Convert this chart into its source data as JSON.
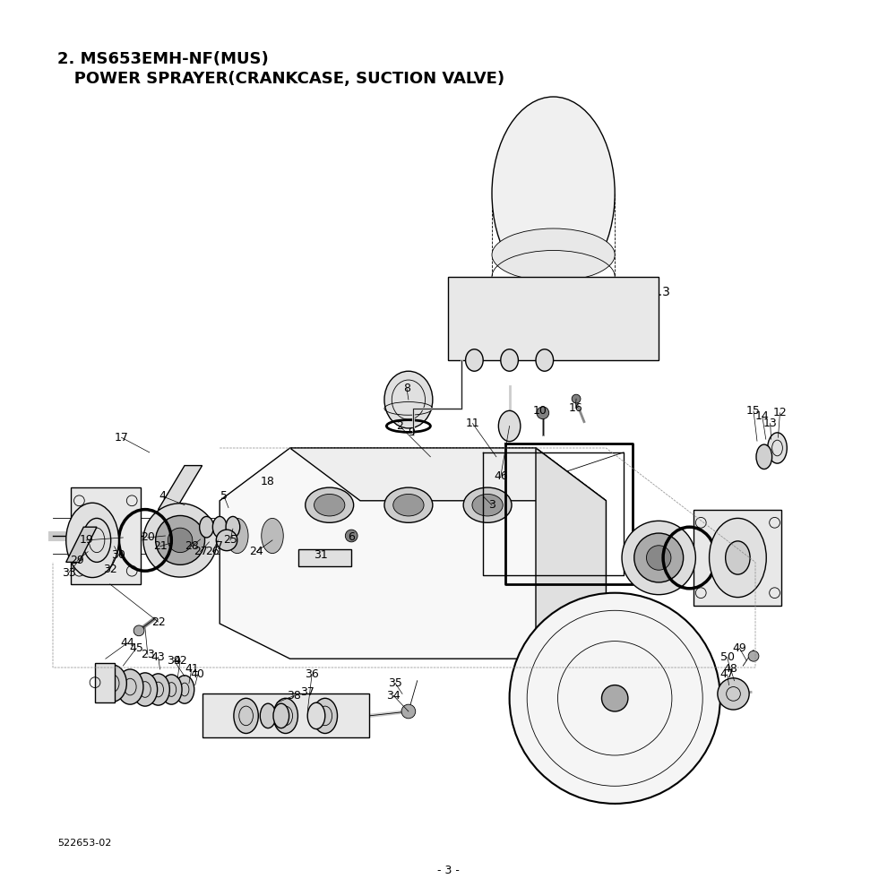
{
  "title_line1": "2. MS653EMH-NF(MUS)",
  "title_line2": "   POWER SPRAYER(CRANKCASE, SUCTION VALVE)",
  "fig_label": "Fig.3",
  "page_number": "- 3 -",
  "doc_number": "522653-02",
  "background_color": "#ffffff",
  "line_color": "#000000",
  "title_fontsize": 13,
  "label_fontsize": 9
}
